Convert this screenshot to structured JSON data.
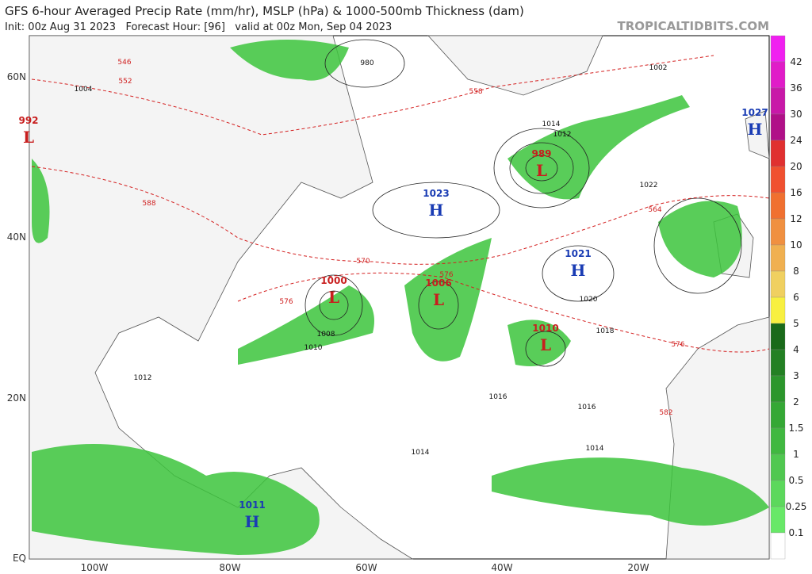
{
  "header": {
    "title": "GFS 6-hour Averaged Precip Rate (mm/hr), MSLP (hPa) & 1000-500mb Thickness (dam)",
    "init_line": "Init: 00z Aug 31 2023   Forecast Hour: [96]   valid at 00z Mon, Sep 04 2023",
    "credit": "TROPICALTIDBITS.COM"
  },
  "lat_labels": [
    "60N",
    "40N",
    "20N",
    "EQ"
  ],
  "lon_labels": [
    "100W",
    "80W",
    "60W",
    "40W",
    "20W"
  ],
  "colorbar": {
    "labels": [
      "42",
      "36",
      "30",
      "24",
      "20",
      "16",
      "12",
      "10",
      "8",
      "6",
      "5",
      "4",
      "3",
      "2",
      "1.5",
      "1",
      "0.5",
      "0.25",
      "0.1"
    ],
    "colors": [
      "#f020f0",
      "#e01cc8",
      "#c818a8",
      "#b01088",
      "#e03030",
      "#f05030",
      "#f07030",
      "#f09040",
      "#f0b050",
      "#f0d060",
      "#f8f040",
      "#1a6a1a",
      "#238023",
      "#2c962c",
      "#35a835",
      "#40b840",
      "#50c850",
      "#5cd85c",
      "#68e868",
      "#ffffff"
    ]
  },
  "pressure_centers": [
    {
      "letter": "L",
      "value": "992"
    },
    {
      "letter": "H",
      "value": "1023"
    },
    {
      "letter": "L",
      "value": "989"
    },
    {
      "letter": "H",
      "value": "1021"
    },
    {
      "letter": "H",
      "value": "1027"
    },
    {
      "letter": "L",
      "value": "1000"
    },
    {
      "letter": "L",
      "value": "1006"
    },
    {
      "letter": "L",
      "value": "1010"
    },
    {
      "letter": "H",
      "value": "1011"
    }
  ],
  "isobar_labels": [
    "980",
    "1014",
    "1012",
    "1016",
    "1014",
    "1018",
    "1020",
    "1022",
    "1016",
    "1014",
    "1012",
    "1010",
    "1008",
    "1004",
    "1002"
  ],
  "thickness_labels": [
    "570",
    "576",
    "576",
    "576",
    "582",
    "564",
    "552",
    "546",
    "588",
    "558"
  ]
}
